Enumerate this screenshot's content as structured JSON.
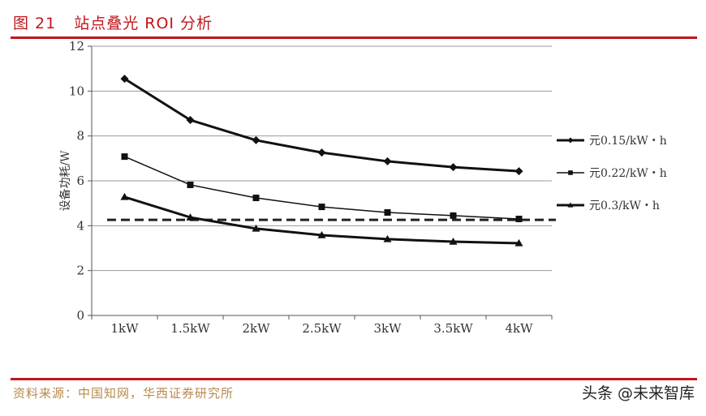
{
  "figure": {
    "number": "图 21",
    "title": "站点叠光 ROI 分析",
    "source": "资料来源：中国知网，华西证券研究所",
    "watermark": "头条 @未来智库",
    "accent_color": "#c0171c",
    "source_color": "#b8894a"
  },
  "chart_data": {
    "type": "line",
    "title": "站点叠光 ROI 分析",
    "xlabel": "",
    "ylabel": "设备功耗/W",
    "categories": [
      "1kW",
      "1.5kW",
      "2kW",
      "2.5kW",
      "3kW",
      "3.5kW",
      "4kW"
    ],
    "yticks": [
      "0",
      "2",
      "4",
      "6",
      "8",
      "10",
      "12"
    ],
    "ylim": [
      0,
      12
    ],
    "grid": true,
    "legend_position": "right",
    "series": [
      {
        "name": "元0.15/kW・h",
        "marker": "diamond",
        "line_width": 3,
        "values": [
          10.55,
          8.71,
          7.81,
          7.26,
          6.87,
          6.61,
          6.43
        ]
      },
      {
        "name": "元0.22/kW・h",
        "marker": "square",
        "line_width": 1.5,
        "values": [
          7.08,
          5.82,
          5.24,
          4.84,
          4.59,
          4.45,
          4.3
        ]
      },
      {
        "name": "元0.3/kW・h",
        "marker": "triangle",
        "line_width": 3,
        "values": [
          5.28,
          4.37,
          3.87,
          3.58,
          3.4,
          3.29,
          3.22
        ]
      }
    ],
    "reference_line": {
      "style": "dashed",
      "value": 4.26
    }
  }
}
